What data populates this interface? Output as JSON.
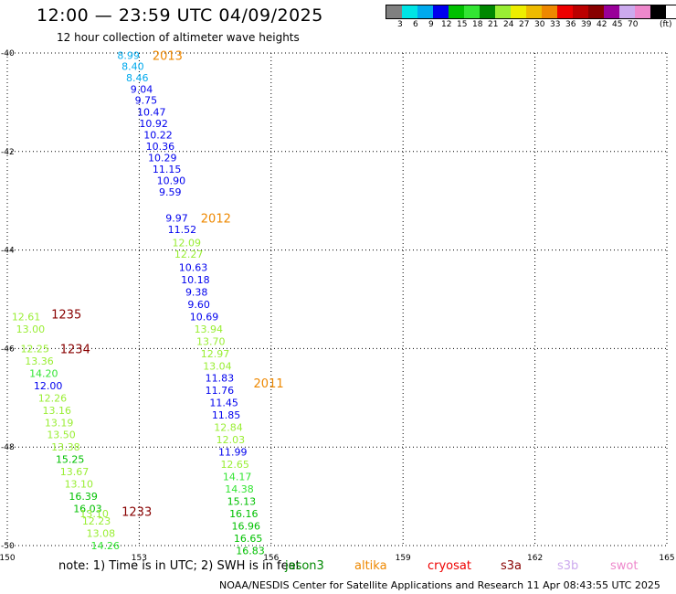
{
  "title": "12:00 — 23:59 UTC 04/09/2025",
  "subtitle": "12 hour collection of altimeter wave heights",
  "legend": {
    "colors": [
      "#808080",
      "#00e5e5",
      "#00aaee",
      "#0000ee",
      "#00c000",
      "#33e533",
      "#008800",
      "#99ee33",
      "#eeee00",
      "#eebb00",
      "#ee8800",
      "#ee0000",
      "#bb0000",
      "#880000",
      "#990099",
      "#ccaaee",
      "#ee88cc",
      "#000000"
    ],
    "ticks": [
      "3",
      "6",
      "9",
      "12",
      "15",
      "18",
      "21",
      "24",
      "27",
      "30",
      "33",
      "36",
      "39",
      "42",
      "45",
      "70"
    ],
    "unit": "(ft)"
  },
  "note": "note:  1) Time is in UTC; 2) SWH is in feet",
  "satellites": [
    {
      "name": "jason3",
      "color": "#008800"
    },
    {
      "name": "altika",
      "color": "#ee8800"
    },
    {
      "name": "cryosat",
      "color": "#ee0000"
    },
    {
      "name": "s3a",
      "color": "#880000"
    },
    {
      "name": "s3b",
      "color": "#ccaaee"
    },
    {
      "name": "swot",
      "color": "#ee88cc"
    }
  ],
  "footer": "NOAA/NESDIS Center for Satellite Applications and Research    11 Apr 08:43:55 UTC 2025",
  "chart_data": {
    "type": "scatter",
    "xlim": [
      150,
      165
    ],
    "ylim": [
      -50,
      -40
    ],
    "x_ticks": [
      "150",
      "153",
      "156",
      "159",
      "162",
      "165"
    ],
    "y_ticks": [
      "-40",
      "-42",
      "-44",
      "-46",
      "-48",
      "-50"
    ],
    "grid": true,
    "time_labels": [
      {
        "text": "2013",
        "x": 153.3,
        "y": -40.05,
        "color": "#ee8800"
      },
      {
        "text": "2012",
        "x": 154.4,
        "y": -43.35,
        "color": "#ee8800"
      },
      {
        "text": "1235",
        "x": 151.0,
        "y": -45.3,
        "color": "#880000"
      },
      {
        "text": "1234",
        "x": 151.2,
        "y": -46.0,
        "color": "#880000"
      },
      {
        "text": "2011",
        "x": 155.6,
        "y": -46.7,
        "color": "#ee8800"
      },
      {
        "text": "1233",
        "x": 152.6,
        "y": -49.3,
        "color": "#880000"
      }
    ],
    "series": [
      {
        "name": "altika",
        "points": [
          {
            "x": 152.5,
            "y": -40.05,
            "v": "8.99",
            "color": "#00aaee"
          },
          {
            "x": 152.6,
            "y": -40.27,
            "v": "8.40",
            "color": "#00aaee"
          },
          {
            "x": 152.7,
            "y": -40.5,
            "v": "8.46",
            "color": "#00aaee"
          },
          {
            "x": 152.8,
            "y": -40.73,
            "v": "9.04",
            "color": "#0000ee"
          },
          {
            "x": 152.9,
            "y": -40.96,
            "v": "9.75",
            "color": "#0000ee"
          },
          {
            "x": 152.95,
            "y": -41.2,
            "v": "10.47",
            "color": "#0000ee"
          },
          {
            "x": 153.0,
            "y": -41.43,
            "v": "10.92",
            "color": "#0000ee"
          },
          {
            "x": 153.1,
            "y": -41.66,
            "v": "10.22",
            "color": "#0000ee"
          },
          {
            "x": 153.15,
            "y": -41.89,
            "v": "10.36",
            "color": "#0000ee"
          },
          {
            "x": 153.2,
            "y": -42.12,
            "v": "10.29",
            "color": "#0000ee"
          },
          {
            "x": 153.3,
            "y": -42.36,
            "v": "11.15",
            "color": "#0000ee"
          },
          {
            "x": 153.4,
            "y": -42.59,
            "v": "10.90",
            "color": "#0000ee"
          },
          {
            "x": 153.45,
            "y": -42.82,
            "v": "9.59",
            "color": "#0000ee"
          },
          {
            "x": 153.6,
            "y": -43.35,
            "v": "9.97",
            "color": "#0000ee"
          },
          {
            "x": 153.65,
            "y": -43.58,
            "v": "11.52",
            "color": "#0000ee"
          },
          {
            "x": 153.75,
            "y": -43.85,
            "v": "12.09",
            "color": "#99ee33"
          },
          {
            "x": 153.8,
            "y": -44.08,
            "v": "12.27",
            "color": "#99ee33"
          },
          {
            "x": 153.9,
            "y": -44.35,
            "v": "10.63",
            "color": "#0000ee"
          },
          {
            "x": 153.95,
            "y": -44.6,
            "v": "10.18",
            "color": "#0000ee"
          },
          {
            "x": 154.05,
            "y": -44.85,
            "v": "9.38",
            "color": "#0000ee"
          },
          {
            "x": 154.1,
            "y": -45.1,
            "v": "9.60",
            "color": "#0000ee"
          },
          {
            "x": 154.15,
            "y": -45.35,
            "v": "10.69",
            "color": "#0000ee"
          },
          {
            "x": 154.25,
            "y": -45.6,
            "v": "13.94",
            "color": "#99ee33"
          },
          {
            "x": 154.3,
            "y": -45.85,
            "v": "13.70",
            "color": "#99ee33"
          },
          {
            "x": 154.4,
            "y": -46.1,
            "v": "12.97",
            "color": "#99ee33"
          },
          {
            "x": 154.45,
            "y": -46.35,
            "v": "13.04",
            "color": "#99ee33"
          },
          {
            "x": 154.5,
            "y": -46.6,
            "v": "11.83",
            "color": "#0000ee"
          },
          {
            "x": 154.5,
            "y": -46.85,
            "v": "11.76",
            "color": "#0000ee"
          },
          {
            "x": 154.6,
            "y": -47.1,
            "v": "11.45",
            "color": "#0000ee"
          },
          {
            "x": 154.65,
            "y": -47.35,
            "v": "11.85",
            "color": "#0000ee"
          },
          {
            "x": 154.7,
            "y": -47.6,
            "v": "12.84",
            "color": "#99ee33"
          },
          {
            "x": 154.75,
            "y": -47.85,
            "v": "12.03",
            "color": "#99ee33"
          },
          {
            "x": 154.8,
            "y": -48.1,
            "v": "11.99",
            "color": "#0000ee"
          },
          {
            "x": 154.85,
            "y": -48.35,
            "v": "12.65",
            "color": "#99ee33"
          },
          {
            "x": 154.9,
            "y": -48.6,
            "v": "14.17",
            "color": "#33e533"
          },
          {
            "x": 154.95,
            "y": -48.85,
            "v": "14.38",
            "color": "#33e533"
          },
          {
            "x": 155.0,
            "y": -49.1,
            "v": "15.13",
            "color": "#00c000"
          },
          {
            "x": 155.05,
            "y": -49.35,
            "v": "16.16",
            "color": "#00c000"
          },
          {
            "x": 155.1,
            "y": -49.6,
            "v": "16.96",
            "color": "#00c000"
          },
          {
            "x": 155.15,
            "y": -49.85,
            "v": "16.65",
            "color": "#00c000"
          },
          {
            "x": 155.2,
            "y": -50.1,
            "v": "16.83",
            "color": "#00c000"
          }
        ]
      },
      {
        "name": "s3a",
        "points": [
          {
            "x": 150.1,
            "y": -45.35,
            "v": "12.61",
            "color": "#99ee33"
          },
          {
            "x": 150.2,
            "y": -45.6,
            "v": "13.00",
            "color": "#99ee33"
          },
          {
            "x": 150.3,
            "y": -46.0,
            "v": "12.25",
            "color": "#99ee33"
          },
          {
            "x": 150.4,
            "y": -46.25,
            "v": "13.36",
            "color": "#99ee33"
          },
          {
            "x": 150.5,
            "y": -46.5,
            "v": "14.20",
            "color": "#33e533"
          },
          {
            "x": 150.6,
            "y": -46.75,
            "v": "12.00",
            "color": "#0000ee"
          },
          {
            "x": 150.7,
            "y": -47.0,
            "v": "12.26",
            "color": "#99ee33"
          },
          {
            "x": 150.8,
            "y": -47.25,
            "v": "13.16",
            "color": "#99ee33"
          },
          {
            "x": 150.85,
            "y": -47.5,
            "v": "13.19",
            "color": "#99ee33"
          },
          {
            "x": 150.9,
            "y": -47.75,
            "v": "13.50",
            "color": "#99ee33"
          },
          {
            "x": 151.0,
            "y": -48.0,
            "v": "13.38",
            "color": "#99ee33"
          },
          {
            "x": 151.1,
            "y": -48.25,
            "v": "15.25",
            "color": "#00c000"
          },
          {
            "x": 151.2,
            "y": -48.5,
            "v": "13.67",
            "color": "#99ee33"
          },
          {
            "x": 151.3,
            "y": -48.75,
            "v": "13.10",
            "color": "#99ee33"
          },
          {
            "x": 151.4,
            "y": -49.0,
            "v": "16.39",
            "color": "#00c000"
          },
          {
            "x": 151.5,
            "y": -49.25,
            "v": "16.03",
            "color": "#00c000"
          },
          {
            "x": 151.65,
            "y": -49.35,
            "v": "13.10",
            "color": "#99ee33"
          },
          {
            "x": 151.7,
            "y": -49.5,
            "v": "12.23",
            "color": "#99ee33"
          },
          {
            "x": 151.8,
            "y": -49.75,
            "v": "13.08",
            "color": "#99ee33"
          },
          {
            "x": 151.9,
            "y": -50.0,
            "v": "14.26",
            "color": "#33e533"
          }
        ]
      }
    ]
  }
}
